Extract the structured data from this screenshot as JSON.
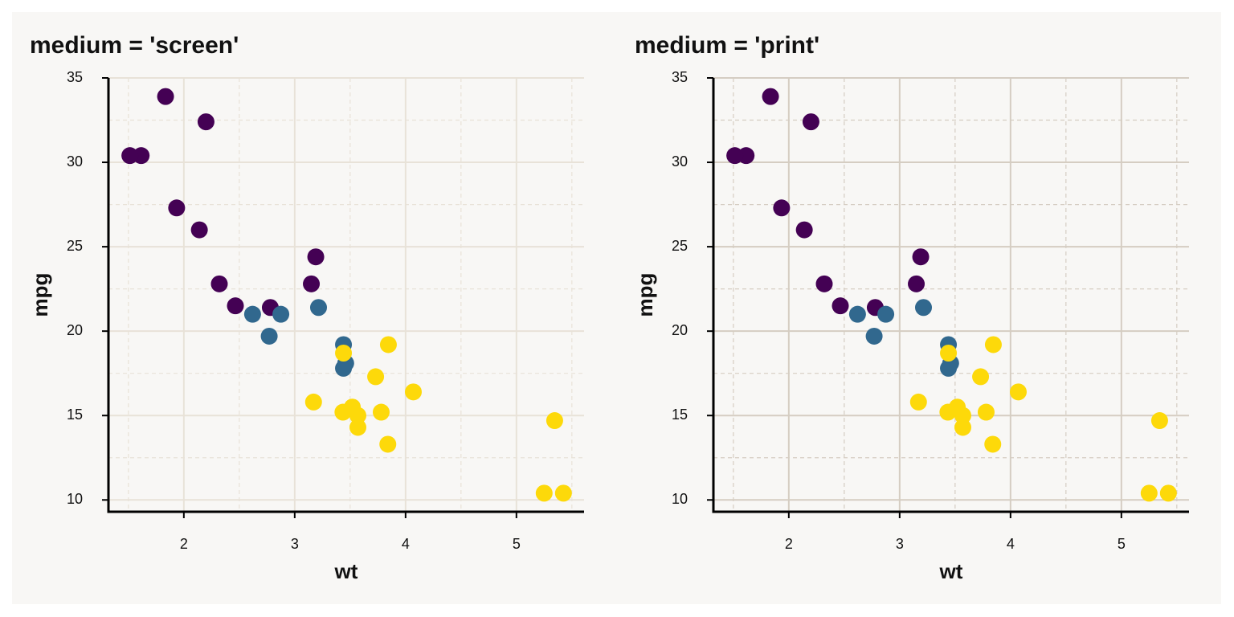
{
  "chart_data": [
    {
      "type": "scatter",
      "title": "medium = 'screen'",
      "xlabel": "wt",
      "ylabel": "mpg",
      "xlim": [
        1.32,
        5.61
      ],
      "ylim": [
        9.3,
        35
      ],
      "xticks": [
        2,
        3,
        4,
        5
      ],
      "yticks": [
        10,
        15,
        20,
        25,
        30,
        35
      ],
      "grid": true,
      "minor_grid": true,
      "grid_color": "#e8e2d8",
      "series": [
        {
          "color": "#440154",
          "x": [
            2.32,
            3.19,
            3.15,
            2.2,
            1.615,
            1.835,
            2.465,
            1.935,
            2.14,
            1.513,
            2.78
          ],
          "values": [
            22.8,
            24.4,
            22.8,
            32.4,
            30.4,
            33.9,
            21.5,
            27.3,
            26.0,
            30.4,
            21.4
          ]
        },
        {
          "color": "#31688e",
          "x": [
            2.62,
            2.875,
            3.215,
            3.46,
            3.44,
            3.44,
            2.77
          ],
          "values": [
            21.0,
            21.0,
            21.4,
            18.1,
            19.2,
            17.8,
            19.7
          ]
        },
        {
          "color": "#fdd90a",
          "x": [
            3.44,
            3.57,
            4.07,
            3.73,
            3.78,
            5.25,
            5.424,
            5.345,
            3.52,
            3.435,
            3.84,
            3.845,
            3.17,
            3.57
          ],
          "values": [
            18.7,
            14.3,
            16.4,
            17.3,
            15.2,
            10.4,
            10.4,
            14.7,
            15.5,
            15.2,
            13.3,
            19.2,
            15.8,
            15.0
          ]
        }
      ]
    },
    {
      "type": "scatter",
      "title": "medium = 'print'",
      "xlabel": "wt",
      "ylabel": "mpg",
      "xlim": [
        1.32,
        5.61
      ],
      "ylim": [
        9.3,
        35
      ],
      "xticks": [
        2,
        3,
        4,
        5
      ],
      "yticks": [
        10,
        15,
        20,
        25,
        30,
        35
      ],
      "grid": true,
      "minor_grid": true,
      "grid_color": "#d5cdc2",
      "series": [
        {
          "color": "#440154",
          "x": [
            2.32,
            3.19,
            3.15,
            2.2,
            1.615,
            1.835,
            2.465,
            1.935,
            2.14,
            1.513,
            2.78
          ],
          "values": [
            22.8,
            24.4,
            22.8,
            32.4,
            30.4,
            33.9,
            21.5,
            27.3,
            26.0,
            30.4,
            21.4
          ]
        },
        {
          "color": "#31688e",
          "x": [
            2.62,
            2.875,
            3.215,
            3.46,
            3.44,
            3.44,
            2.77
          ],
          "values": [
            21.0,
            21.0,
            21.4,
            18.1,
            19.2,
            17.8,
            19.7
          ]
        },
        {
          "color": "#fdd90a",
          "x": [
            3.44,
            3.57,
            4.07,
            3.73,
            3.78,
            5.25,
            5.424,
            5.345,
            3.52,
            3.435,
            3.84,
            3.845,
            3.17,
            3.57
          ],
          "values": [
            18.7,
            14.3,
            16.4,
            17.3,
            15.2,
            10.4,
            10.4,
            14.7,
            15.5,
            15.2,
            13.3,
            19.2,
            15.8,
            15.0
          ]
        }
      ]
    }
  ]
}
